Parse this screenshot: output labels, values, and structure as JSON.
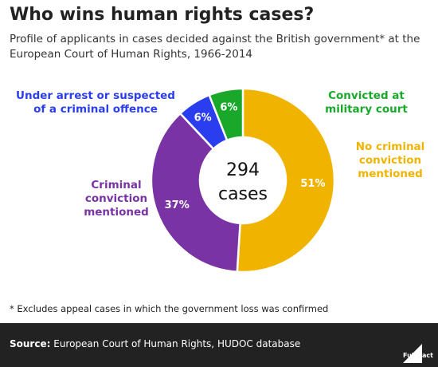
{
  "title": "Who wins human rights cases?",
  "subtitle": "Profile of applicants in cases decided against the British government* at the European Court of Human Rights, 1966-2014",
  "footnote": "* Excludes appeal cases in which the government loss was confirmed",
  "source_label": "Source:",
  "source_text": "European Court of Human Rights, HUDOC database",
  "brand": "Full Fact",
  "chart_data": {
    "type": "pie",
    "variant": "donut",
    "center_label": [
      "294",
      "cases"
    ],
    "total": 294,
    "slices": [
      {
        "label": [
          "No criminal",
          "conviction",
          "mentioned"
        ],
        "value": 51,
        "value_label": "51%",
        "color": "#f0b400"
      },
      {
        "label": [
          "Criminal",
          "conviction",
          "mentioned"
        ],
        "value": 37,
        "value_label": "37%",
        "color": "#7a33a4"
      },
      {
        "label": [
          "Under arrest or suspected",
          "of a criminal offence"
        ],
        "value": 6,
        "value_label": "6%",
        "color": "#2a3ef0"
      },
      {
        "label": [
          "Convicted at",
          "military court"
        ],
        "value": 6,
        "value_label": "6%",
        "color": "#19a82a"
      }
    ]
  }
}
